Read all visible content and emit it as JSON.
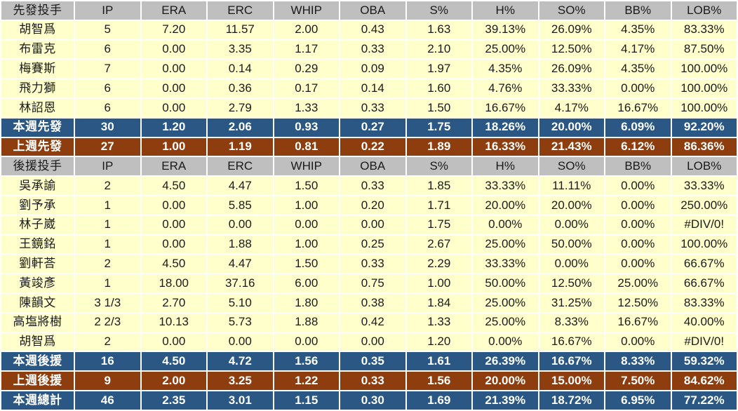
{
  "colors": {
    "header_bg": "#bfbfbf",
    "row_bg": "#ffffcc",
    "highlight_blue": "#2a5784",
    "highlight_brown": "#8e3d0e",
    "grid": "#ffffff",
    "outer_border": "#7b7b7b",
    "text_dark": "#1a1a1a",
    "text_light": "#ffffff"
  },
  "chart_data": {
    "type": "table",
    "columns": [
      "先發投手",
      "IP",
      "ERA",
      "ERC",
      "WHIP",
      "OBA",
      "S%",
      "H%",
      "SO%",
      "BB%",
      "LOB%"
    ],
    "rows": [
      {
        "style": "header",
        "cells": [
          "先發投手",
          "IP",
          "ERA",
          "ERC",
          "WHIP",
          "OBA",
          "S%",
          "H%",
          "SO%",
          "BB%",
          "LOB%"
        ]
      },
      {
        "style": "player",
        "cells": [
          "胡智爲",
          "5",
          "7.20",
          "11.57",
          "2.00",
          "0.43",
          "1.63",
          "39.13%",
          "26.09%",
          "4.35%",
          "83.33%"
        ]
      },
      {
        "style": "player",
        "cells": [
          "布雷克",
          "6",
          "0.00",
          "3.35",
          "1.17",
          "0.33",
          "2.10",
          "25.00%",
          "12.50%",
          "4.17%",
          "87.50%"
        ]
      },
      {
        "style": "player",
        "cells": [
          "梅賽斯",
          "7",
          "0.00",
          "0.14",
          "0.29",
          "0.09",
          "1.97",
          "4.35%",
          "26.09%",
          "4.35%",
          "100.00%"
        ]
      },
      {
        "style": "player",
        "cells": [
          "飛力獅",
          "6",
          "0.00",
          "0.36",
          "0.17",
          "0.14",
          "1.60",
          "4.76%",
          "33.33%",
          "0.00%",
          "100.00%"
        ]
      },
      {
        "style": "player",
        "cells": [
          "林詔恩",
          "6",
          "0.00",
          "2.79",
          "1.33",
          "0.33",
          "1.50",
          "16.67%",
          "4.17%",
          "16.67%",
          "100.00%"
        ]
      },
      {
        "style": "blue",
        "cells": [
          "本週先發",
          "30",
          "1.20",
          "2.06",
          "0.93",
          "0.27",
          "1.75",
          "18.26%",
          "20.00%",
          "6.09%",
          "92.20%"
        ]
      },
      {
        "style": "brown",
        "cells": [
          "上週先發",
          "27",
          "1.00",
          "1.19",
          "0.81",
          "0.22",
          "1.89",
          "16.33%",
          "21.43%",
          "6.12%",
          "86.36%"
        ]
      },
      {
        "style": "header",
        "cells": [
          "後援投手",
          "IP",
          "ERA",
          "ERC",
          "WHIP",
          "OBA",
          "S%",
          "H%",
          "SO%",
          "BB%",
          "LOB%"
        ]
      },
      {
        "style": "player",
        "cells": [
          "吳承諭",
          "2",
          "4.50",
          "4.47",
          "1.50",
          "0.33",
          "1.85",
          "33.33%",
          "11.11%",
          "0.00%",
          "33.33%"
        ]
      },
      {
        "style": "player",
        "cells": [
          "劉予承",
          "1",
          "0.00",
          "5.85",
          "1.00",
          "0.20",
          "1.71",
          "20.00%",
          "20.00%",
          "0.00%",
          "250.00%"
        ]
      },
      {
        "style": "player",
        "cells": [
          "林子崴",
          "1",
          "0.00",
          "0.00",
          "0.00",
          "0.00",
          "1.75",
          "0.00%",
          "0.00%",
          "0.00%",
          "#DIV/0!"
        ]
      },
      {
        "style": "player",
        "cells": [
          "王鏡銘",
          "1",
          "0.00",
          "1.88",
          "1.00",
          "0.25",
          "2.67",
          "25.00%",
          "50.00%",
          "0.00%",
          "100.00%"
        ]
      },
      {
        "style": "player",
        "cells": [
          "劉軒荅",
          "2",
          "4.50",
          "4.47",
          "1.50",
          "0.33",
          "2.29",
          "33.33%",
          "0.00%",
          "0.00%",
          "66.67%"
        ]
      },
      {
        "style": "player",
        "cells": [
          "黃竣彥",
          "1",
          "18.00",
          "37.16",
          "6.00",
          "0.75",
          "1.00",
          "50.00%",
          "12.50%",
          "25.00%",
          "66.67%"
        ]
      },
      {
        "style": "player",
        "cells": [
          "陳韻文",
          "3 1/3",
          "2.70",
          "5.10",
          "1.80",
          "0.38",
          "1.84",
          "25.00%",
          "31.25%",
          "12.50%",
          "83.33%"
        ]
      },
      {
        "style": "player",
        "cells": [
          "高塩將樹",
          "2 2/3",
          "10.13",
          "5.73",
          "1.88",
          "0.42",
          "1.33",
          "25.00%",
          "8.33%",
          "16.67%",
          "40.00%"
        ]
      },
      {
        "style": "player",
        "cells": [
          "胡智爲",
          "2",
          "0.00",
          "0.00",
          "0.00",
          "0.00",
          "1.20",
          "0.00%",
          "16.67%",
          "0.00%",
          "#DIV/0!"
        ]
      },
      {
        "style": "blue",
        "cells": [
          "本週後援",
          "16",
          "4.50",
          "4.72",
          "1.56",
          "0.35",
          "1.61",
          "26.39%",
          "16.67%",
          "8.33%",
          "59.32%"
        ]
      },
      {
        "style": "brown",
        "cells": [
          "上週後援",
          "9",
          "2.00",
          "3.25",
          "1.22",
          "0.33",
          "1.56",
          "20.00%",
          "15.00%",
          "7.50%",
          "84.62%"
        ]
      },
      {
        "style": "blue",
        "cells": [
          "本週總計",
          "46",
          "2.35",
          "3.01",
          "1.15",
          "0.30",
          "1.69",
          "21.39%",
          "18.72%",
          "6.95%",
          "77.22%"
        ]
      }
    ]
  }
}
